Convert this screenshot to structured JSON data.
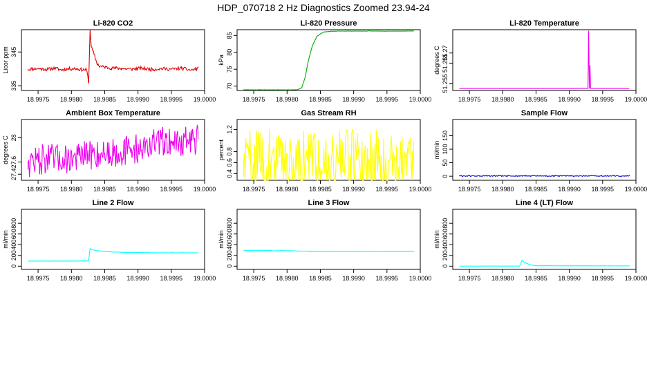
{
  "title": "HDP_070718  2 Hz Diagnostics Zoomed 23.94-24",
  "x_ticks": [
    "18.9975",
    "18.9980",
    "18.9985",
    "18.9990",
    "18.9995",
    "19.0000"
  ],
  "x_tick_values": [
    18.9975,
    18.998,
    18.9985,
    18.999,
    18.9995,
    19.0
  ],
  "x_range": [
    18.99725,
    19.0
  ],
  "chart_data": [
    {
      "type": "line",
      "title": "Li-820 CO2",
      "ylabel": "Licor ppm",
      "color": "#e00000",
      "ylim": [
        333.6,
        351.6
      ],
      "yticks": [
        335,
        345
      ],
      "x": [
        18.99735,
        18.99745,
        18.99755,
        18.99765,
        18.99775,
        18.99785,
        18.99795,
        18.99805,
        18.99815,
        18.99823,
        18.99826,
        18.99828,
        18.9983,
        18.99834,
        18.99838,
        18.99842,
        18.9985,
        18.9986,
        18.99875,
        18.9989,
        18.99905,
        18.9992,
        18.99935,
        18.9995,
        18.99965,
        18.9998,
        18.9999
      ],
      "values": [
        339.8,
        340.1,
        340.0,
        339.9,
        340.2,
        339.7,
        340.0,
        340.1,
        339.8,
        339.7,
        335.9,
        351.5,
        346.5,
        344.3,
        341.8,
        340.8,
        340.5,
        340.3,
        340.1,
        339.9,
        340.2,
        339.8,
        340.1,
        339.9,
        340.2,
        339.6,
        340.2
      ],
      "noise": 0.5,
      "seed": 11
    },
    {
      "type": "line",
      "title": "Li-820 Pressure",
      "ylabel": "kPa",
      "color": "#00aa00",
      "ylim": [
        68.7,
        86.7
      ],
      "yticks": [
        70,
        75,
        80,
        85
      ],
      "x": [
        18.99735,
        18.9978,
        18.99815,
        18.99822,
        18.99827,
        18.99832,
        18.99838,
        18.99845,
        18.99855,
        18.99865,
        18.9988,
        18.9999
      ],
      "values": [
        68.9,
        68.9,
        68.9,
        69.5,
        72.5,
        77.5,
        82.0,
        84.8,
        86.0,
        86.2,
        86.3,
        86.3
      ],
      "noise": 0.05,
      "seed": 23
    },
    {
      "type": "line",
      "title": "Li-820 Temperature",
      "ylabel": "degrees C",
      "color": "#ee00ee",
      "ylim": [
        51.2515,
        51.2815
      ],
      "yticks": [
        51.255,
        51.265,
        51.27
      ],
      "x": [
        18.99735,
        18.99928,
        18.99929,
        18.9993,
        18.99931,
        18.99932,
        18.99933,
        18.9999
      ],
      "values": [
        51.2525,
        51.2525,
        51.281,
        51.2525,
        51.264,
        51.2525,
        51.2525,
        51.2525
      ],
      "noise": 0,
      "seed": 31
    },
    {
      "type": "line",
      "title": "Ambient Box Temperature",
      "ylabel": "degrees C",
      "color": "#ee00ee",
      "ylim": [
        27.3,
        28.3
      ],
      "yticks": [
        27.4,
        27.6,
        28.0
      ],
      "x": [
        18.99735,
        18.9976,
        18.9979,
        18.9982,
        18.9985,
        18.9988,
        18.9991,
        18.9994,
        18.9996,
        18.9999
      ],
      "values": [
        27.6,
        27.65,
        27.65,
        27.7,
        27.75,
        27.78,
        27.85,
        27.95,
        27.93,
        27.98
      ],
      "noise": 0.25,
      "seed": 47
    },
    {
      "type": "line",
      "title": "Gas Stream RH",
      "ylabel": "percent",
      "color": "#ffff00",
      "ylim": [
        0.28,
        1.38
      ],
      "yticks": [
        0.4,
        0.6,
        0.8,
        1.2
      ],
      "x": [
        18.99735,
        18.9999
      ],
      "values": [
        0.62,
        0.62
      ],
      "noise": 0.6,
      "seed": 59
    },
    {
      "type": "line",
      "title": "Sample Flow",
      "ylabel": "ml/min",
      "color": "#0000cc",
      "ylim": [
        -15,
        210
      ],
      "yticks": [
        0,
        50,
        100,
        150
      ],
      "x": [
        18.99735,
        18.9999
      ],
      "values": [
        1,
        1
      ],
      "noise": 2,
      "seed": 61
    },
    {
      "type": "line",
      "title": "Line 2 Flow",
      "ylabel": "ml/min",
      "color": "#00ffff",
      "ylim": [
        -60,
        1060
      ],
      "yticks": [
        0,
        200,
        400,
        600,
        800
      ],
      "x": [
        18.99735,
        18.9978,
        18.99826,
        18.99828,
        18.99833,
        18.99842,
        18.9986,
        18.99885,
        18.9993,
        18.9999
      ],
      "values": [
        95,
        95,
        98,
        330,
        300,
        285,
        265,
        255,
        250,
        250
      ],
      "noise": 3,
      "seed": 71
    },
    {
      "type": "line",
      "title": "Line 3 Flow",
      "ylabel": "ml/min",
      "color": "#00ffff",
      "ylim": [
        -60,
        1060
      ],
      "yticks": [
        0,
        200,
        400,
        600,
        800
      ],
      "x": [
        18.99735,
        18.998,
        18.99835,
        18.9999
      ],
      "values": [
        295,
        290,
        275,
        275
      ],
      "noise": 4,
      "seed": 83
    },
    {
      "type": "line",
      "title": "Line 4 (LT) Flow",
      "ylabel": "ml/min",
      "color": "#00ffff",
      "ylim": [
        -60,
        1060
      ],
      "yticks": [
        0,
        200,
        400,
        600,
        800
      ],
      "x": [
        18.99735,
        18.99825,
        18.99827,
        18.99829,
        18.99833,
        18.9984,
        18.9985,
        18.9999
      ],
      "values": [
        2,
        2,
        40,
        110,
        70,
        30,
        8,
        5
      ],
      "noise": 1.5,
      "seed": 97
    }
  ]
}
